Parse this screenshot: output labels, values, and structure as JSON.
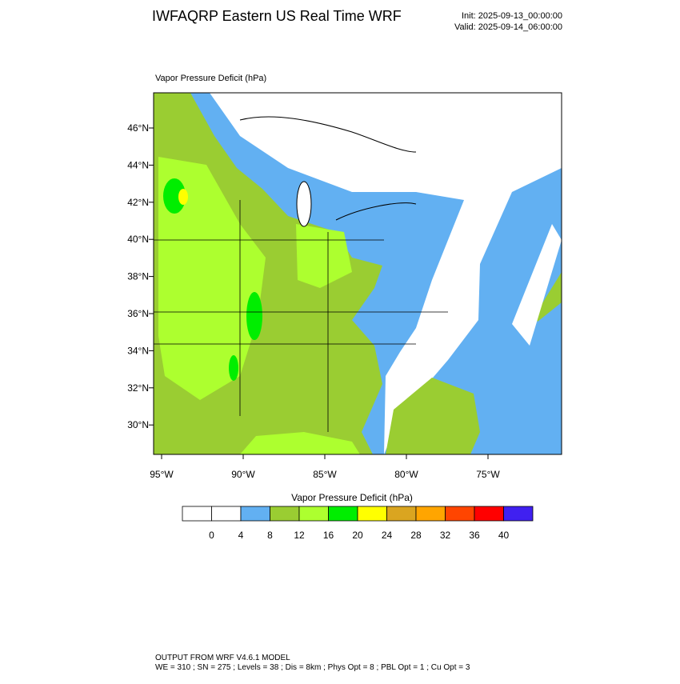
{
  "header": {
    "title": "IWFAQRP Eastern US Real Time WRF",
    "init": "Init: 2025-09-13_00:00:00",
    "valid": "Valid: 2025-09-14_06:00:00"
  },
  "map": {
    "field_label": "Vapor Pressure Deficit   (hPa)",
    "lat_labels": [
      "46°N",
      "44°N",
      "42°N",
      "40°N",
      "38°N",
      "36°N",
      "34°N",
      "32°N",
      "30°N"
    ],
    "lon_labels": [
      "95°W",
      "90°W",
      "85°W",
      "80°W",
      "75°W"
    ]
  },
  "colorbar": {
    "title": "Vapor Pressure Deficit   (hPa)",
    "colors": [
      "#ffffff",
      "#ffffff",
      "#62b0f2",
      "#9acd32",
      "#adff2f",
      "#00ee00",
      "#ffff00",
      "#daa520",
      "#ffa500",
      "#ff4500",
      "#ff0000",
      "#4020f0"
    ],
    "labels": [
      0,
      4,
      8,
      12,
      16,
      20,
      24,
      28,
      32,
      36,
      40
    ]
  },
  "footer": {
    "line1": "OUTPUT FROM WRF V4.6.1 MODEL",
    "line2": "WE = 310 ; SN = 275 ; Levels = 38 ; Dis = 8km ; Phys Opt = 8 ; PBL Opt = 1 ; Cu Opt = 3"
  }
}
